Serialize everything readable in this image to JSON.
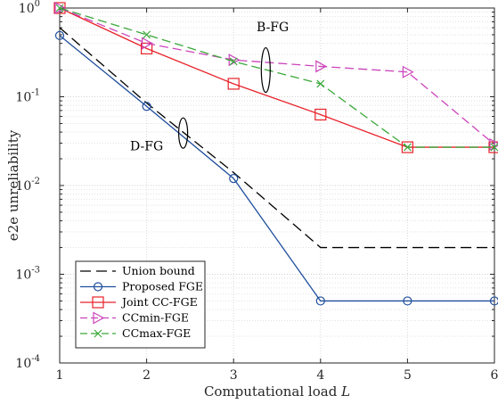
{
  "chart_data": {
    "type": "line",
    "x_scale": "linear",
    "y_scale": "log",
    "xlabel": "Computational load",
    "xlabel_symbol": "L",
    "ylabel": "e2e unreliability",
    "xlim": [
      1,
      6
    ],
    "ylim": [
      0.0001,
      1
    ],
    "grid": true,
    "legend_position": "bottom-left",
    "x_ticks": [
      1,
      2,
      3,
      4,
      5,
      6
    ],
    "x_tick_labels": [
      "1",
      "2",
      "3",
      "4",
      "5",
      "6"
    ],
    "y_ticks": [
      0.0001,
      0.001,
      0.01,
      0.1,
      1
    ],
    "y_tick_bases": [
      "10",
      "10",
      "10",
      "10",
      "10"
    ],
    "y_tick_exponents": [
      "-4",
      "-3",
      "-2",
      "-1",
      "0"
    ],
    "series": [
      {
        "name": "Union bound",
        "color": "#000000",
        "dash": "dashed",
        "marker": "none",
        "x": [
          1,
          2,
          3,
          4,
          5,
          6
        ],
        "y": [
          0.6,
          0.085,
          0.014,
          0.002,
          0.002,
          0.002
        ]
      },
      {
        "name": "Proposed FGE",
        "color": "#1f4e9c",
        "dash": "solid",
        "marker": "circle",
        "x": [
          1,
          2,
          3,
          4,
          5,
          6
        ],
        "y": [
          0.49,
          0.078,
          0.012,
          0.0005,
          0.0005,
          0.0005
        ]
      },
      {
        "name": "Joint CC-FGE",
        "color": "#e8222a",
        "dash": "solid",
        "marker": "square",
        "x": [
          1,
          2,
          3,
          4,
          5,
          6
        ],
        "y": [
          1.0,
          0.35,
          0.14,
          0.063,
          0.027,
          0.027
        ]
      },
      {
        "name": "CCmin-FGE",
        "color": "#cc44bb",
        "dash": "dashed",
        "marker": "triangle-right",
        "x": [
          1,
          2,
          3,
          4,
          5,
          6
        ],
        "y": [
          1.0,
          0.4,
          0.26,
          0.22,
          0.19,
          0.029
        ]
      },
      {
        "name": "CCmax-FGE",
        "color": "#3aa83a",
        "dash": "dashed",
        "marker": "x",
        "x": [
          1,
          2,
          3,
          4,
          5,
          6
        ],
        "y": [
          1.0,
          0.5,
          0.25,
          0.14,
          0.027,
          0.027
        ]
      }
    ],
    "annotations": [
      {
        "text": "B-FG",
        "x": 3.45,
        "y": 0.55
      },
      {
        "text": "D-FG",
        "x": 2.0,
        "y": 0.025
      }
    ]
  }
}
